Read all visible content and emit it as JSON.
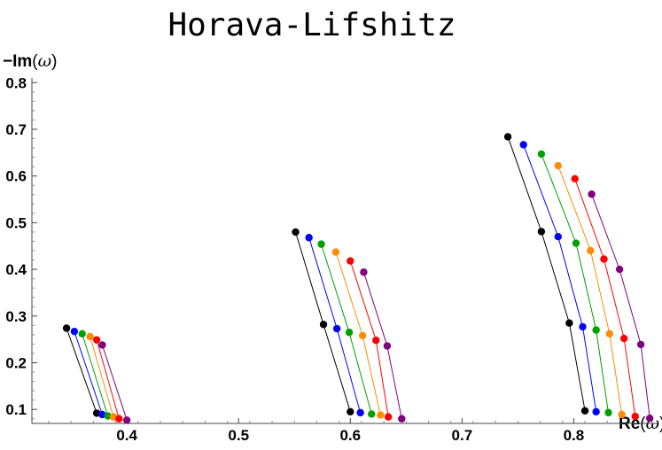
{
  "chart_data": {
    "type": "scatter",
    "title": "Horava-Lifshitz",
    "xlabel": {
      "bold": "Re",
      "open": "(",
      "var": "ω",
      "close": ")"
    },
    "ylabel": {
      "bold": "−Im",
      "open": "(",
      "var": "ω",
      "close": ")"
    },
    "xlim": [
      0.315,
      0.875
    ],
    "ylim": [
      0.07,
      0.81
    ],
    "xticks": [
      0.4,
      0.5,
      0.6,
      0.7,
      0.8
    ],
    "yticks": [
      0.1,
      0.2,
      0.3,
      0.4,
      0.5,
      0.6,
      0.7,
      0.8
    ],
    "grid": false,
    "legend": "none",
    "series": [
      {
        "color": "#000000",
        "groups": [
          [
            [
              0.346,
              0.274
            ],
            [
              0.373,
              0.092
            ]
          ],
          [
            [
              0.551,
              0.48
            ],
            [
              0.576,
              0.282
            ],
            [
              0.6,
              0.095
            ]
          ],
          [
            [
              0.741,
              0.684
            ],
            [
              0.771,
              0.481
            ],
            [
              0.796,
              0.285
            ],
            [
              0.81,
              0.097
            ]
          ]
        ]
      },
      {
        "color": "#0000ff",
        "groups": [
          [
            [
              0.353,
              0.267
            ],
            [
              0.378,
              0.089
            ]
          ],
          [
            [
              0.563,
              0.468
            ],
            [
              0.588,
              0.273
            ],
            [
              0.609,
              0.093
            ]
          ],
          [
            [
              0.755,
              0.667
            ],
            [
              0.786,
              0.47
            ],
            [
              0.808,
              0.277
            ],
            [
              0.82,
              0.095
            ]
          ]
        ]
      },
      {
        "color": "#00a000",
        "groups": [
          [
            [
              0.36,
              0.262
            ],
            [
              0.383,
              0.086
            ]
          ],
          [
            [
              0.574,
              0.454
            ],
            [
              0.599,
              0.265
            ],
            [
              0.619,
              0.09
            ]
          ],
          [
            [
              0.771,
              0.647
            ],
            [
              0.802,
              0.456
            ],
            [
              0.82,
              0.27
            ],
            [
              0.831,
              0.093
            ]
          ]
        ]
      },
      {
        "color": "#ff8c00",
        "groups": [
          [
            [
              0.367,
              0.256
            ],
            [
              0.388,
              0.084
            ]
          ],
          [
            [
              0.587,
              0.437
            ],
            [
              0.611,
              0.258
            ],
            [
              0.627,
              0.088
            ]
          ],
          [
            [
              0.786,
              0.622
            ],
            [
              0.815,
              0.44
            ],
            [
              0.832,
              0.262
            ],
            [
              0.843,
              0.089
            ]
          ]
        ]
      },
      {
        "color": "#ff0000",
        "groups": [
          [
            [
              0.373,
              0.249
            ],
            [
              0.393,
              0.08
            ]
          ],
          [
            [
              0.6,
              0.418
            ],
            [
              0.623,
              0.248
            ],
            [
              0.634,
              0.084
            ]
          ],
          [
            [
              0.801,
              0.594
            ],
            [
              0.827,
              0.422
            ],
            [
              0.845,
              0.252
            ],
            [
              0.855,
              0.085
            ]
          ]
        ]
      },
      {
        "color": "#800080",
        "groups": [
          [
            [
              0.378,
              0.238
            ],
            [
              0.4,
              0.077
            ]
          ],
          [
            [
              0.612,
              0.394
            ],
            [
              0.633,
              0.236
            ],
            [
              0.646,
              0.08
            ]
          ],
          [
            [
              0.816,
              0.561
            ],
            [
              0.841,
              0.4
            ],
            [
              0.86,
              0.239
            ],
            [
              0.868,
              0.081
            ]
          ]
        ]
      }
    ]
  }
}
